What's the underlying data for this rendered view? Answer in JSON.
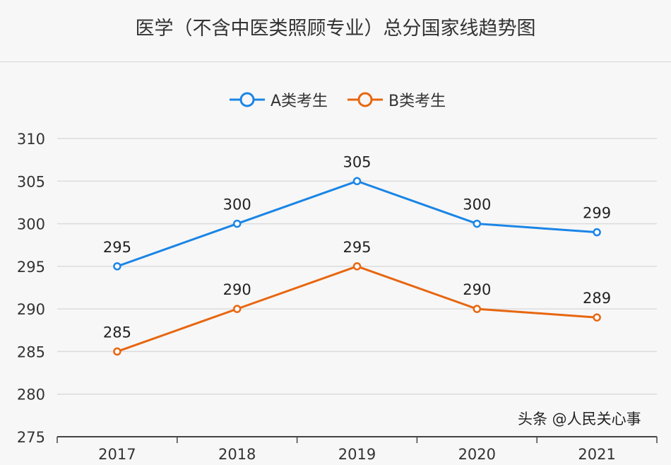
{
  "chart_data": {
    "type": "line",
    "title": "医学（不含中医类照顾专业）总分国家线趋势图",
    "categories": [
      "2017",
      "2018",
      "2019",
      "2020",
      "2021"
    ],
    "series": [
      {
        "name": "A类考生",
        "values": [
          295,
          300,
          305,
          300,
          299
        ],
        "color": "#1a85e6"
      },
      {
        "name": "B类考生",
        "values": [
          285,
          290,
          295,
          290,
          289
        ],
        "color": "#e8660f"
      }
    ],
    "ylim": [
      275,
      310
    ],
    "yticks": [
      275,
      280,
      285,
      290,
      295,
      300,
      305,
      310
    ],
    "grid": true,
    "legend": "top-center",
    "data_labels": true
  },
  "watermark": "头条 @人民关心事"
}
